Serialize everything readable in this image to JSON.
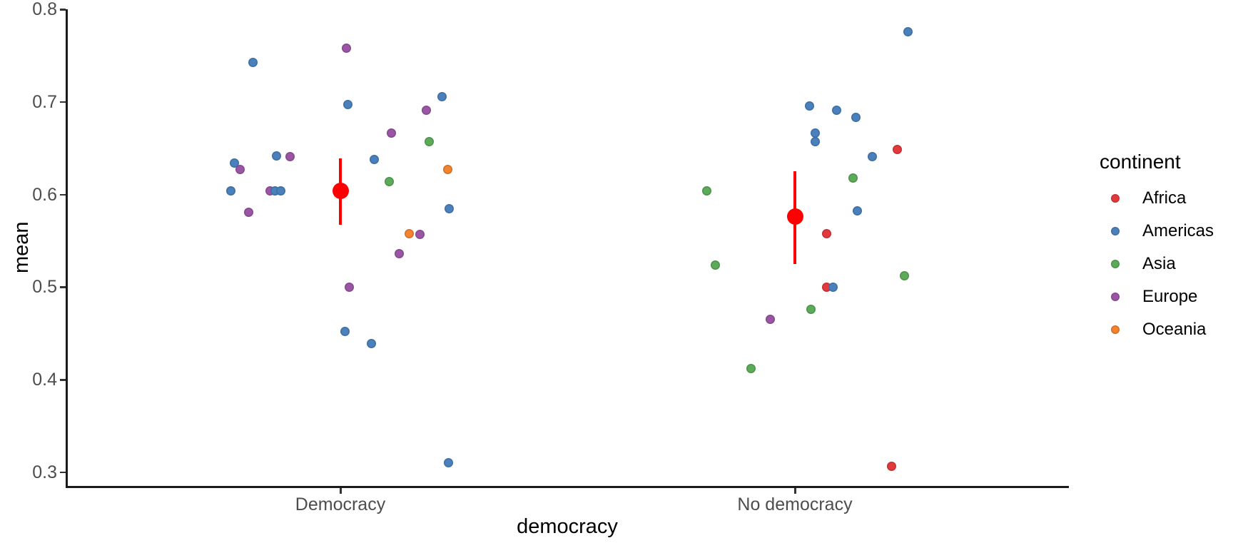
{
  "chart_data": {
    "type": "scatter",
    "title": "",
    "xlabel": "democracy",
    "ylabel": "mean",
    "categories": [
      "Democracy",
      "No democracy"
    ],
    "y_ticks": [
      0.8,
      0.7,
      0.6,
      0.5,
      0.4,
      0.3
    ],
    "ylim": [
      0.28,
      0.82
    ],
    "grid": "off",
    "legend": {
      "title": "continent",
      "position": "right",
      "entries": [
        {
          "label": "Africa",
          "color": "#E2393D"
        },
        {
          "label": "Americas",
          "color": "#4A80BC"
        },
        {
          "label": "Asia",
          "color": "#5BAB59"
        },
        {
          "label": "Europe",
          "color": "#9A55A5"
        },
        {
          "label": "Oceania",
          "color": "#F5822D"
        }
      ]
    },
    "summary_color": "#FF0000",
    "summary": [
      {
        "category": "Democracy",
        "mean": 0.604,
        "lower": 0.567,
        "upper": 0.639
      },
      {
        "category": "No democracy",
        "mean": 0.576,
        "lower": 0.525,
        "upper": 0.625
      }
    ],
    "points": [
      {
        "category": 0,
        "continent": "Americas",
        "value": 0.743,
        "jitter": -123
      },
      {
        "category": 0,
        "continent": "Europe",
        "value": 0.758,
        "jitter": 8
      },
      {
        "category": 0,
        "continent": "Americas",
        "value": 0.697,
        "jitter": 10
      },
      {
        "category": 0,
        "continent": "Americas",
        "value": 0.706,
        "jitter": 142
      },
      {
        "category": 0,
        "continent": "Europe",
        "value": 0.691,
        "jitter": 120
      },
      {
        "category": 0,
        "continent": "Europe",
        "value": 0.666,
        "jitter": 71
      },
      {
        "category": 0,
        "continent": "Asia",
        "value": 0.657,
        "jitter": 124
      },
      {
        "category": 0,
        "continent": "Americas",
        "value": 0.642,
        "jitter": -90
      },
      {
        "category": 0,
        "continent": "Europe",
        "value": 0.641,
        "jitter": -71
      },
      {
        "category": 0,
        "continent": "Americas",
        "value": 0.638,
        "jitter": 47
      },
      {
        "category": 0,
        "continent": "Americas",
        "value": 0.634,
        "jitter": -149
      },
      {
        "category": 0,
        "continent": "Europe",
        "value": 0.627,
        "jitter": -141
      },
      {
        "category": 0,
        "continent": "Oceania",
        "value": 0.627,
        "jitter": 150
      },
      {
        "category": 0,
        "continent": "Asia",
        "value": 0.614,
        "jitter": 68
      },
      {
        "category": 0,
        "continent": "Americas",
        "value": 0.604,
        "jitter": -154
      },
      {
        "category": 0,
        "continent": "Europe",
        "value": 0.604,
        "jitter": -99
      },
      {
        "category": 0,
        "continent": "Americas",
        "value": 0.604,
        "jitter": -92
      },
      {
        "category": 0,
        "continent": "Americas",
        "value": 0.604,
        "jitter": -84
      },
      {
        "category": 0,
        "continent": "Europe",
        "value": 0.581,
        "jitter": -129
      },
      {
        "category": 0,
        "continent": "Americas",
        "value": 0.585,
        "jitter": 152
      },
      {
        "category": 0,
        "continent": "Oceania",
        "value": 0.558,
        "jitter": 96
      },
      {
        "category": 0,
        "continent": "Europe",
        "value": 0.557,
        "jitter": 111
      },
      {
        "category": 0,
        "continent": "Europe",
        "value": 0.536,
        "jitter": 82
      },
      {
        "category": 0,
        "continent": "Europe",
        "value": 0.5,
        "jitter": 12
      },
      {
        "category": 0,
        "continent": "Americas",
        "value": 0.452,
        "jitter": 6
      },
      {
        "category": 0,
        "continent": "Americas",
        "value": 0.439,
        "jitter": 43
      },
      {
        "category": 0,
        "continent": "Americas",
        "value": 0.31,
        "jitter": 151
      },
      {
        "category": 1,
        "continent": "Americas",
        "value": 0.776,
        "jitter": 158
      },
      {
        "category": 1,
        "continent": "Americas",
        "value": 0.696,
        "jitter": 20
      },
      {
        "category": 1,
        "continent": "Americas",
        "value": 0.691,
        "jitter": 58
      },
      {
        "category": 1,
        "continent": "Americas",
        "value": 0.683,
        "jitter": 85
      },
      {
        "category": 1,
        "continent": "Americas",
        "value": 0.666,
        "jitter": 28
      },
      {
        "category": 1,
        "continent": "Americas",
        "value": 0.657,
        "jitter": 28
      },
      {
        "category": 1,
        "continent": "Africa",
        "value": 0.649,
        "jitter": 143
      },
      {
        "category": 1,
        "continent": "Americas",
        "value": 0.641,
        "jitter": 108
      },
      {
        "category": 1,
        "continent": "Asia",
        "value": 0.618,
        "jitter": 81
      },
      {
        "category": 1,
        "continent": "Asia",
        "value": 0.604,
        "jitter": -124
      },
      {
        "category": 1,
        "continent": "Americas",
        "value": 0.582,
        "jitter": 87
      },
      {
        "category": 1,
        "continent": "Africa",
        "value": 0.558,
        "jitter": 44
      },
      {
        "category": 1,
        "continent": "Asia",
        "value": 0.524,
        "jitter": -112
      },
      {
        "category": 1,
        "continent": "Asia",
        "value": 0.512,
        "jitter": 153
      },
      {
        "category": 1,
        "continent": "Africa",
        "value": 0.5,
        "jitter": 44
      },
      {
        "category": 1,
        "continent": "Americas",
        "value": 0.5,
        "jitter": 53
      },
      {
        "category": 1,
        "continent": "Asia",
        "value": 0.476,
        "jitter": 22
      },
      {
        "category": 1,
        "continent": "Europe",
        "value": 0.465,
        "jitter": -35
      },
      {
        "category": 1,
        "continent": "Asia",
        "value": 0.412,
        "jitter": -62
      },
      {
        "category": 1,
        "continent": "Africa",
        "value": 0.306,
        "jitter": 135
      }
    ]
  }
}
